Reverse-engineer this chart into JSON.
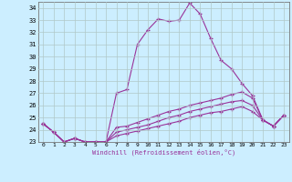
{
  "xlabel": "Windchill (Refroidissement éolien,°C)",
  "bg_color": "#cceeff",
  "grid_color": "#b0c8c8",
  "line_color": "#993399",
  "xlim": [
    -0.5,
    23.5
  ],
  "ylim": [
    23,
    34.5
  ],
  "yticks": [
    23,
    24,
    25,
    26,
    27,
    28,
    29,
    30,
    31,
    32,
    33,
    34
  ],
  "xticks": [
    0,
    1,
    2,
    3,
    4,
    5,
    6,
    7,
    8,
    9,
    10,
    11,
    12,
    13,
    14,
    15,
    16,
    17,
    18,
    19,
    20,
    21,
    22,
    23
  ],
  "xtick_labels": [
    "0",
    "1",
    "2",
    "3",
    "4",
    "5",
    "6",
    "7",
    "8",
    "9",
    "10",
    "11",
    "12",
    "13",
    "14",
    "15",
    "16",
    "17",
    "18",
    "19",
    "20",
    "21",
    "22",
    "23"
  ],
  "series": [
    [
      24.5,
      23.8,
      23.0,
      23.3,
      23.0,
      23.0,
      23.0,
      27.0,
      27.3,
      31.0,
      32.2,
      33.1,
      32.9,
      33.0,
      34.4,
      33.5,
      31.5,
      29.7,
      29.0,
      27.8,
      26.8,
      24.8,
      24.3,
      25.2
    ],
    [
      24.5,
      23.8,
      23.0,
      23.3,
      23.0,
      23.0,
      23.0,
      24.2,
      24.3,
      24.6,
      24.9,
      25.2,
      25.5,
      25.7,
      26.0,
      26.2,
      26.4,
      26.6,
      26.9,
      27.1,
      26.6,
      24.8,
      24.3,
      25.2
    ],
    [
      24.5,
      23.8,
      23.0,
      23.3,
      23.0,
      23.0,
      23.0,
      23.8,
      24.0,
      24.2,
      24.4,
      24.7,
      25.0,
      25.2,
      25.5,
      25.7,
      25.9,
      26.1,
      26.3,
      26.4,
      26.0,
      24.8,
      24.3,
      25.2
    ],
    [
      24.5,
      23.8,
      23.0,
      23.3,
      23.0,
      23.0,
      23.0,
      23.5,
      23.7,
      23.9,
      24.1,
      24.3,
      24.5,
      24.7,
      25.0,
      25.2,
      25.4,
      25.5,
      25.7,
      25.9,
      25.5,
      24.8,
      24.3,
      25.2
    ]
  ]
}
